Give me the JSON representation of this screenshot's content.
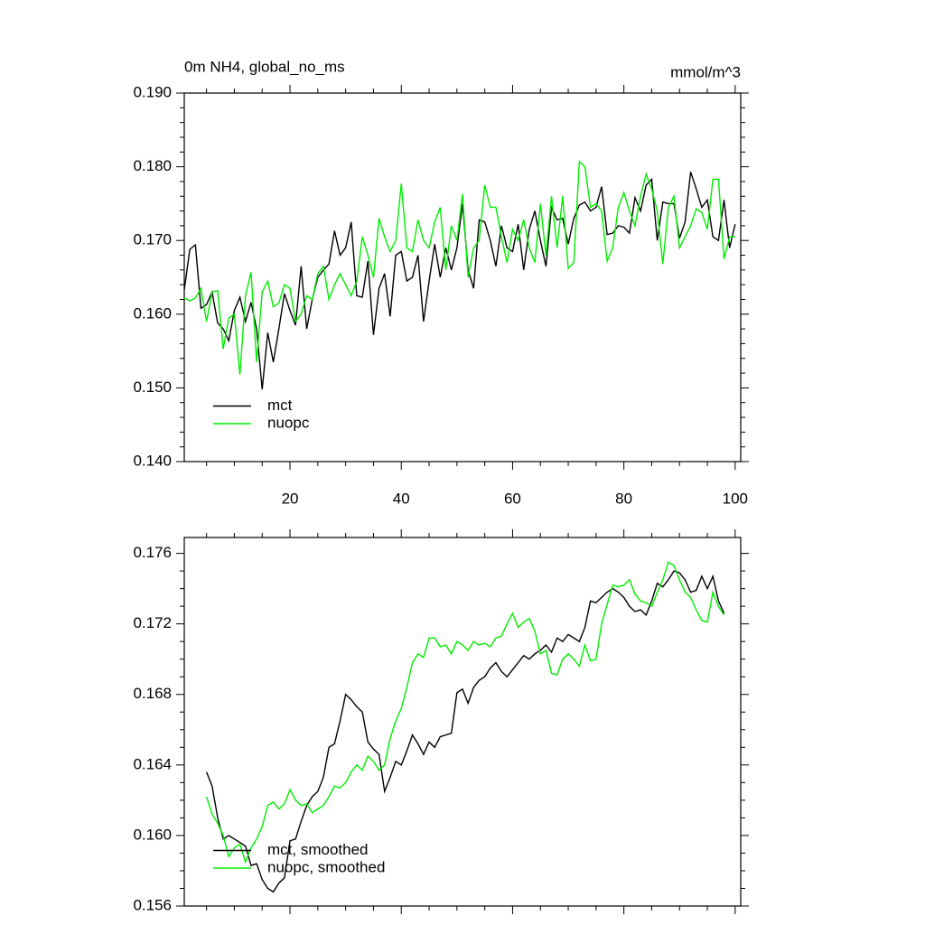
{
  "chart_data": [
    {
      "type": "line",
      "title": "0m NH4, global_no_ms",
      "subtitle": "mmol/m^3",
      "x": [
        1,
        2,
        3,
        4,
        5,
        6,
        7,
        8,
        9,
        10,
        11,
        12,
        13,
        14,
        15,
        16,
        17,
        18,
        19,
        20,
        21,
        22,
        23,
        24,
        25,
        26,
        27,
        28,
        29,
        30,
        31,
        32,
        33,
        34,
        35,
        36,
        37,
        38,
        39,
        40,
        41,
        42,
        43,
        44,
        45,
        46,
        47,
        48,
        49,
        50,
        51,
        52,
        53,
        54,
        55,
        56,
        57,
        58,
        59,
        60,
        61,
        62,
        63,
        64,
        65,
        66,
        67,
        68,
        69,
        70,
        71,
        72,
        73,
        74,
        75,
        76,
        77,
        78,
        79,
        80,
        81,
        82,
        83,
        84,
        85,
        86,
        87,
        88,
        89,
        90,
        91,
        92,
        93,
        94,
        95,
        96,
        97,
        98,
        99,
        100
      ],
      "series": [
        {
          "name": "mct",
          "color": "#000000",
          "values": [
            0.1633,
            0.1688,
            0.1694,
            0.1608,
            0.1613,
            0.163,
            0.1588,
            0.158,
            0.1564,
            0.1605,
            0.1623,
            0.159,
            0.1616,
            0.158,
            0.1498,
            0.1575,
            0.1535,
            0.158,
            0.1628,
            0.1605,
            0.1585,
            0.1665,
            0.158,
            0.162,
            0.165,
            0.166,
            0.1668,
            0.1713,
            0.168,
            0.169,
            0.1725,
            0.1625,
            0.1623,
            0.1672,
            0.1572,
            0.1635,
            0.1655,
            0.1597,
            0.168,
            0.1685,
            0.1645,
            0.165,
            0.168,
            0.159,
            0.1645,
            0.1695,
            0.165,
            0.169,
            0.166,
            0.169,
            0.175,
            0.166,
            0.1635,
            0.1728,
            0.1725,
            0.17,
            0.1665,
            0.172,
            0.169,
            0.1685,
            0.1722,
            0.166,
            0.1715,
            0.174,
            0.17,
            0.1665,
            0.1745,
            0.1728,
            0.173,
            0.1695,
            0.173,
            0.1748,
            0.1752,
            0.174,
            0.1745,
            0.1773,
            0.1708,
            0.171,
            0.172,
            0.1718,
            0.171,
            0.1758,
            0.174,
            0.1775,
            0.1783,
            0.17,
            0.1752,
            0.175,
            0.175,
            0.1703,
            0.1725,
            0.1793,
            0.177,
            0.1745,
            0.1755,
            0.1705,
            0.17,
            0.1755,
            0.169,
            0.1722
          ]
        },
        {
          "name": "nuopc",
          "color": "#00ee00",
          "values": [
            0.1622,
            0.1618,
            0.1622,
            0.1635,
            0.159,
            0.163,
            0.1632,
            0.1553,
            0.1595,
            0.16,
            0.1518,
            0.1625,
            0.1657,
            0.1535,
            0.163,
            0.1645,
            0.161,
            0.1615,
            0.164,
            0.1635,
            0.159,
            0.16,
            0.1625,
            0.162,
            0.1655,
            0.1665,
            0.162,
            0.164,
            0.1655,
            0.164,
            0.1625,
            0.1645,
            0.1705,
            0.168,
            0.165,
            0.173,
            0.1705,
            0.1685,
            0.17,
            0.1777,
            0.169,
            0.1685,
            0.1728,
            0.17,
            0.169,
            0.1725,
            0.1745,
            0.166,
            0.172,
            0.17,
            0.1763,
            0.165,
            0.169,
            0.17,
            0.1775,
            0.1745,
            0.1745,
            0.1705,
            0.167,
            0.1715,
            0.17,
            0.1728,
            0.169,
            0.167,
            0.175,
            0.168,
            0.176,
            0.169,
            0.176,
            0.1662,
            0.167,
            0.1807,
            0.18,
            0.1745,
            0.175,
            0.174,
            0.1672,
            0.169,
            0.1745,
            0.1765,
            0.174,
            0.172,
            0.176,
            0.179,
            0.177,
            0.174,
            0.1668,
            0.1745,
            0.176,
            0.169,
            0.1705,
            0.172,
            0.1743,
            0.1738,
            0.1715,
            0.1783,
            0.1783,
            0.1675,
            0.1705,
            0.1705
          ]
        }
      ],
      "xlim": [
        1,
        101
      ],
      "xticks": [
        20,
        40,
        60,
        80,
        100
      ],
      "xtick_labels": true,
      "x_minor_per_major": 3,
      "ylim": [
        0.14,
        0.19
      ],
      "yticks": [
        {
          "value": 0.14,
          "label": "0.140"
        },
        {
          "value": 0.15,
          "label": "0.150"
        },
        {
          "value": 0.16,
          "label": "0.160"
        },
        {
          "value": 0.17,
          "label": "0.170"
        },
        {
          "value": 0.18,
          "label": "0.180"
        },
        {
          "value": 0.19,
          "label": "0.190"
        }
      ],
      "y_minor_per_major": 4,
      "legend": "lower left"
    },
    {
      "type": "line",
      "x": [
        5,
        6,
        7,
        8,
        9,
        10,
        11,
        12,
        13,
        14,
        15,
        16,
        17,
        18,
        19,
        20,
        21,
        22,
        23,
        24,
        25,
        26,
        27,
        28,
        29,
        30,
        31,
        32,
        33,
        34,
        35,
        36,
        37,
        38,
        39,
        40,
        41,
        42,
        43,
        44,
        45,
        46,
        47,
        48,
        49,
        50,
        51,
        52,
        53,
        54,
        55,
        56,
        57,
        58,
        59,
        60,
        61,
        62,
        63,
        64,
        65,
        66,
        67,
        68,
        69,
        70,
        71,
        72,
        73,
        74,
        75,
        76,
        77,
        78,
        79,
        80,
        81,
        82,
        83,
        84,
        85,
        86,
        87,
        88,
        89,
        90,
        91,
        92,
        93,
        94,
        95,
        96,
        97,
        98
      ],
      "series": [
        {
          "name": "mct, smoothed",
          "color": "#000000",
          "values": [
            0.1636,
            0.1628,
            0.161,
            0.1598,
            0.16,
            0.1598,
            0.1596,
            0.1594,
            0.1583,
            0.1584,
            0.1575,
            0.157,
            0.1568,
            0.1573,
            0.1576,
            0.1597,
            0.1598,
            0.1608,
            0.1617,
            0.1622,
            0.1625,
            0.1633,
            0.165,
            0.1652,
            0.1665,
            0.168,
            0.1677,
            0.1673,
            0.167,
            0.1653,
            0.1649,
            0.1646,
            0.1625,
            0.1633,
            0.1642,
            0.164,
            0.1648,
            0.1657,
            0.1652,
            0.1646,
            0.1653,
            0.165,
            0.1656,
            0.1657,
            0.1658,
            0.1681,
            0.1683,
            0.1675,
            0.1684,
            0.1688,
            0.169,
            0.1695,
            0.1698,
            0.1693,
            0.169,
            0.1694,
            0.1698,
            0.1702,
            0.17,
            0.1703,
            0.1705,
            0.1708,
            0.1704,
            0.1712,
            0.171,
            0.1714,
            0.1712,
            0.171,
            0.1718,
            0.1733,
            0.1732,
            0.1735,
            0.1738,
            0.174,
            0.1738,
            0.1735,
            0.173,
            0.1727,
            0.1728,
            0.1725,
            0.1733,
            0.1743,
            0.1741,
            0.1745,
            0.175,
            0.1749,
            0.1745,
            0.1738,
            0.1739,
            0.1747,
            0.174,
            0.1747,
            0.1733,
            0.1726
          ]
        },
        {
          "name": "nuopc, smoothed",
          "color": "#00ee00",
          "values": [
            0.1622,
            0.1612,
            0.1607,
            0.16,
            0.1588,
            0.1593,
            0.1595,
            0.1585,
            0.1593,
            0.1598,
            0.1605,
            0.1617,
            0.1619,
            0.1615,
            0.1618,
            0.1626,
            0.162,
            0.1617,
            0.1618,
            0.1613,
            0.1615,
            0.1617,
            0.1622,
            0.1628,
            0.1627,
            0.163,
            0.1636,
            0.164,
            0.1637,
            0.1645,
            0.1642,
            0.1637,
            0.164,
            0.1655,
            0.1665,
            0.1672,
            0.1684,
            0.1698,
            0.1703,
            0.1701,
            0.1712,
            0.1712,
            0.1707,
            0.1708,
            0.1703,
            0.171,
            0.1708,
            0.1705,
            0.171,
            0.1708,
            0.1709,
            0.1707,
            0.1712,
            0.1713,
            0.172,
            0.1726,
            0.1718,
            0.1721,
            0.1723,
            0.1716,
            0.1703,
            0.1705,
            0.1692,
            0.1691,
            0.17,
            0.1703,
            0.17,
            0.1696,
            0.1708,
            0.1699,
            0.17,
            0.172,
            0.1731,
            0.1742,
            0.1741,
            0.1742,
            0.1745,
            0.1737,
            0.1733,
            0.1732,
            0.173,
            0.1738,
            0.1745,
            0.1755,
            0.1753,
            0.1745,
            0.1738,
            0.1735,
            0.1728,
            0.1722,
            0.1721,
            0.1738,
            0.173,
            0.1725
          ]
        }
      ],
      "xlim": [
        1,
        101
      ],
      "xticks": [
        20,
        40,
        60,
        80,
        100
      ],
      "xtick_labels": false,
      "x_minor_per_major": 3,
      "ylim": [
        0.156,
        0.1769
      ],
      "yticks": [
        {
          "value": 0.156,
          "label": "0.156"
        },
        {
          "value": 0.16,
          "label": "0.160"
        },
        {
          "value": 0.164,
          "label": "0.164"
        },
        {
          "value": 0.168,
          "label": "0.168"
        },
        {
          "value": 0.172,
          "label": "0.172"
        },
        {
          "value": 0.176,
          "label": "0.176"
        }
      ],
      "y_minor_per_major": 3,
      "legend": "lower left"
    }
  ]
}
